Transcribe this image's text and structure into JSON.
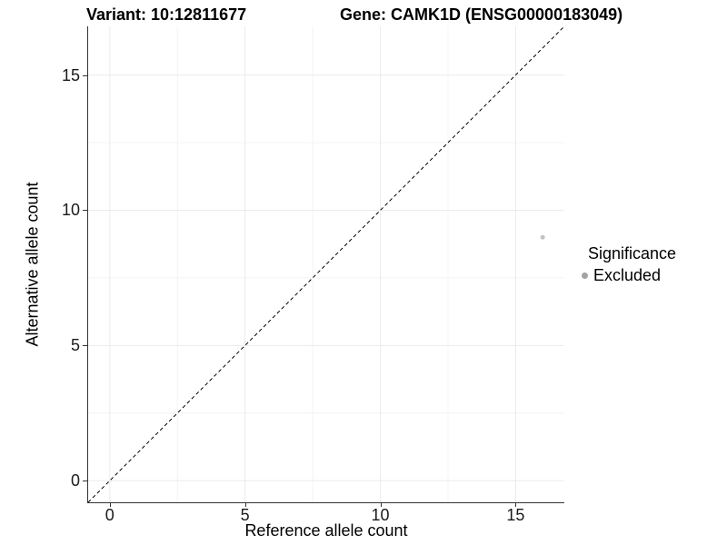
{
  "header": {
    "variant_title": "Variant: 10:12811677",
    "gene_title": "Gene: CAMK1D (ENSG00000183049)"
  },
  "chart_data": {
    "type": "scatter",
    "xlabel": "Reference allele count",
    "ylabel": "Alternative allele count",
    "xlim": [
      -0.8,
      16.8
    ],
    "ylim": [
      -0.8,
      16.8
    ],
    "x_ticks": [
      0,
      5,
      10,
      15
    ],
    "y_ticks": [
      0,
      5,
      10,
      15
    ],
    "x_minor_ticks": [
      2.5,
      7.5,
      12.5
    ],
    "y_minor_ticks": [
      2.5,
      7.5,
      12.5
    ],
    "grid": true,
    "reference_line": {
      "type": "identity y=x",
      "from": [
        -0.8,
        -0.8
      ],
      "to": [
        16.8,
        16.8
      ],
      "style": "dashed",
      "color": "#000000"
    },
    "series": [
      {
        "name": "Excluded",
        "color": "#c2c2c2",
        "marker": "circle",
        "points": [
          {
            "x": 16,
            "y": 9
          }
        ]
      }
    ],
    "legend": {
      "title": "Significance",
      "position": "right",
      "items": [
        {
          "label": "Excluded",
          "color": "#a3a3a3",
          "marker": "circle"
        }
      ]
    },
    "colors": {
      "axis_line": "#333333",
      "grid_major": "#ebebeb",
      "grid_minor": "#f4f4f4",
      "point": "#c2c2c2",
      "text": "#000000"
    }
  }
}
